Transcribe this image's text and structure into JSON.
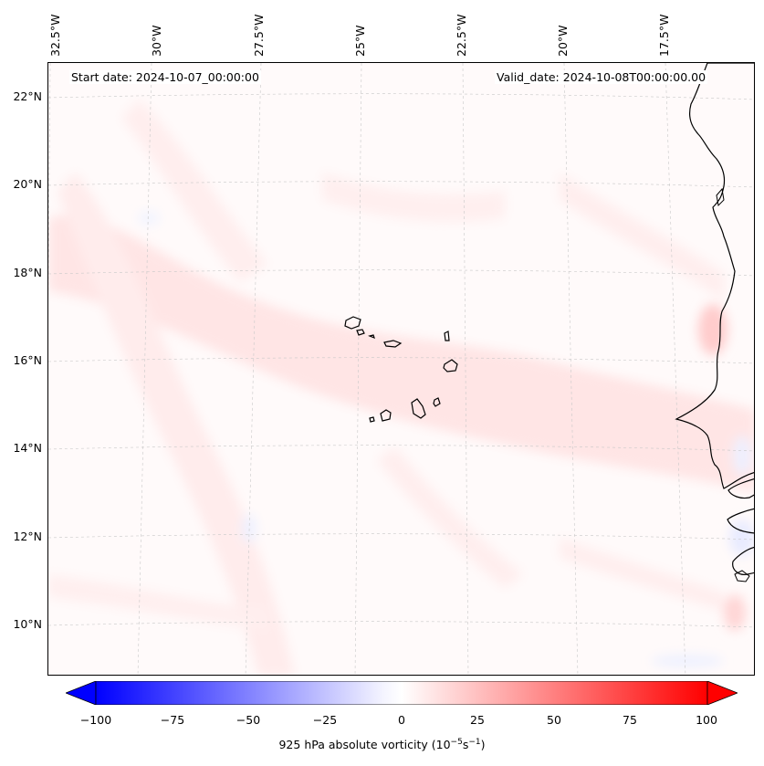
{
  "map": {
    "start_date": "Start date: 2024-10-07_00:00:00",
    "valid_date": "Valid_date: 2024-10-08T00:00:00.00",
    "lon_labels": [
      "32.5°W",
      "30°W",
      "27.5°W",
      "25°W",
      "22.5°W",
      "20°W",
      "17.5°W"
    ],
    "lat_labels": [
      "22°N",
      "20°N",
      "18°N",
      "16°N",
      "14°N",
      "12°N",
      "10°N"
    ],
    "islands": "Cape Verde",
    "coast": "West Africa"
  },
  "colorbar": {
    "ticks": [
      "−100",
      "−75",
      "−50",
      "−25",
      "0",
      "25",
      "50",
      "75",
      "100"
    ],
    "label_main": "925 hPa absolute vorticity (10",
    "label_exp1": "−5",
    "label_mid": "s",
    "label_exp2": "−1",
    "label_end": ")",
    "min_color": "#0000ff",
    "max_color": "#ff0000"
  }
}
